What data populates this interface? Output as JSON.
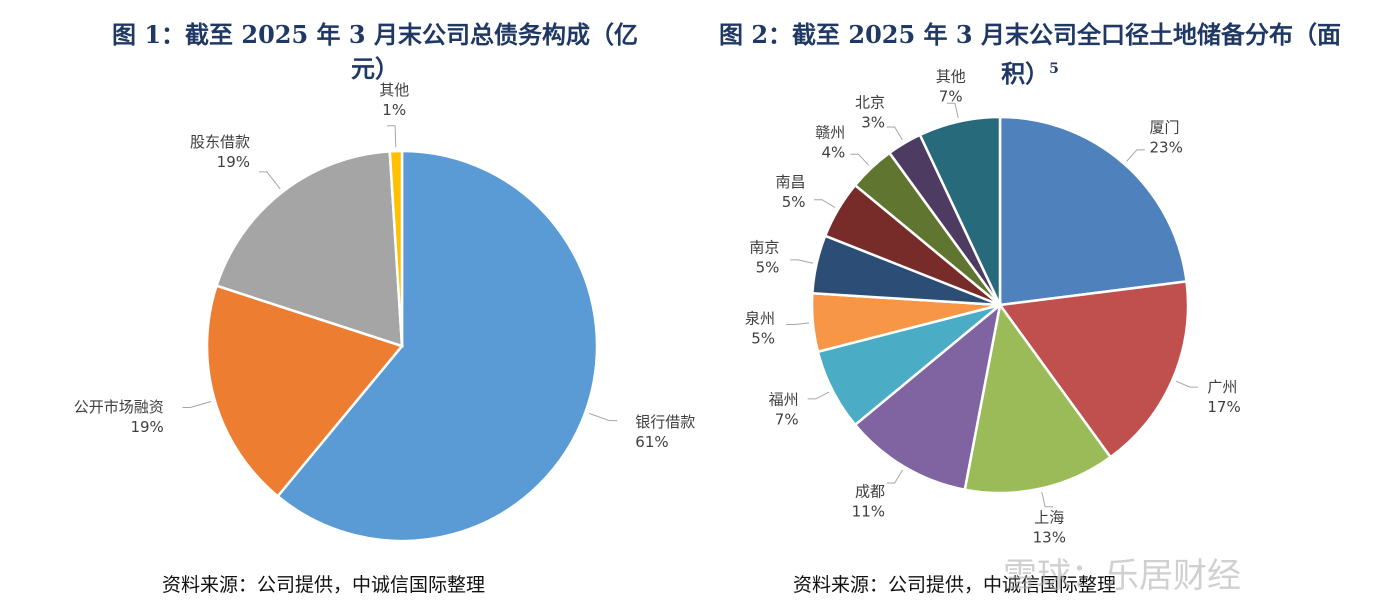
{
  "chart_data": [
    {
      "type": "pie",
      "title": "图 1：截至 2025 年 3 月末公司总债务构成（亿元）",
      "title_lines": [
        "图 1：截至 2025 年 3 月末公司总债务构成（亿",
        "元）"
      ],
      "slices": [
        {
          "label": "银行借款",
          "value": 61,
          "value_text": "61%",
          "color": "#5b9bd5"
        },
        {
          "label": "公开市场融资",
          "value": 19,
          "value_text": "19%",
          "color": "#ed7d31"
        },
        {
          "label": "股东借款",
          "value": 19,
          "value_text": "19%",
          "color": "#a5a5a5"
        },
        {
          "label": "其他",
          "value": 1,
          "value_text": "1%",
          "color": "#ffc000"
        }
      ],
      "source": "资料来源：公司提供，中诚信国际整理"
    },
    {
      "type": "pie",
      "title": "图 2：截至 2025 年 3 月末公司全口径土地储备分布（面积）5",
      "title_lines": [
        "图 2：截至 2025 年 3 月末公司全口径土地储备分布（面",
        "积）"
      ],
      "title_sup": "5",
      "slices": [
        {
          "label": "厦门",
          "value": 23,
          "value_text": "23%",
          "color": "#4f81bd"
        },
        {
          "label": "广州",
          "value": 17,
          "value_text": "17%",
          "color": "#c0504d"
        },
        {
          "label": "上海",
          "value": 13,
          "value_text": "13%",
          "color": "#9bbb59"
        },
        {
          "label": "成都",
          "value": 11,
          "value_text": "11%",
          "color": "#8064a2"
        },
        {
          "label": "福州",
          "value": 7,
          "value_text": "7%",
          "color": "#4bacc6"
        },
        {
          "label": "泉州",
          "value": 5,
          "value_text": "5%",
          "color": "#f79646"
        },
        {
          "label": "南京",
          "value": 5,
          "value_text": "5%",
          "color": "#2c4d75"
        },
        {
          "label": "南昌",
          "value": 5,
          "value_text": "5%",
          "color": "#772c2a"
        },
        {
          "label": "赣州",
          "value": 4,
          "value_text": "4%",
          "color": "#5f7530"
        },
        {
          "label": "北京",
          "value": 3,
          "value_text": "3%",
          "color": "#4d3b62"
        },
        {
          "label": "其他",
          "value": 7,
          "value_text": "7%",
          "color": "#276a7c"
        }
      ],
      "source": "资料来源：公司提供，中诚信国际整理"
    }
  ],
  "watermark": "雪球：乐居财经"
}
